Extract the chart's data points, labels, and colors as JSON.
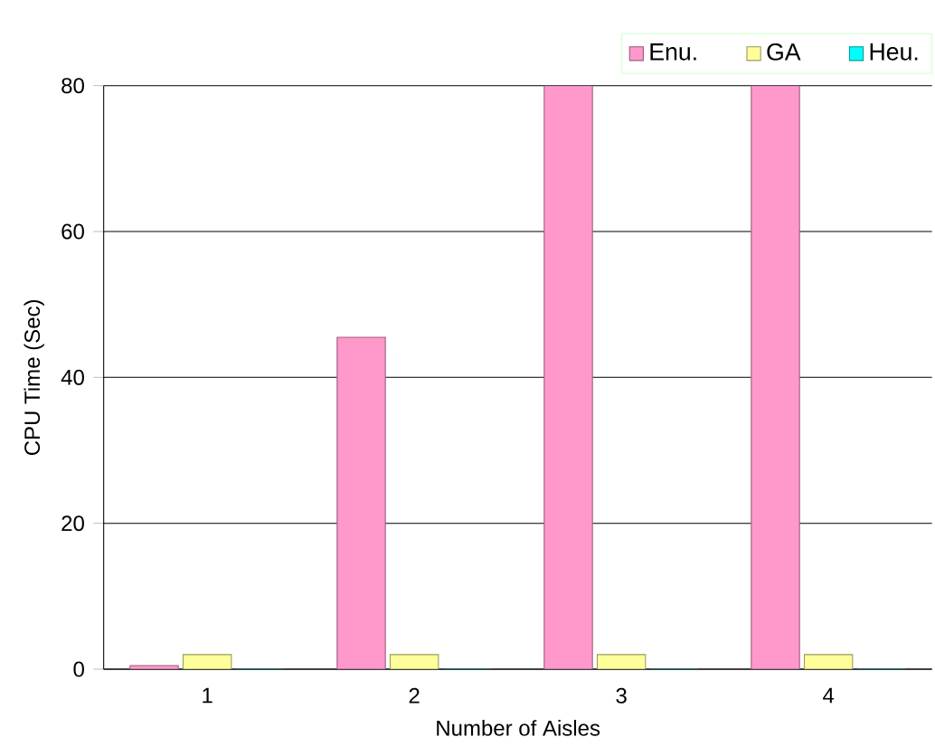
{
  "chart_data": {
    "type": "bar",
    "xlabel": "Number of Aisles",
    "ylabel": "CPU Time (Sec)",
    "categories": [
      "1",
      "2",
      "3",
      "4"
    ],
    "series": [
      {
        "name": "Enu.",
        "color": "#ff99cc",
        "values": [
          0.5,
          45.5,
          80,
          80
        ]
      },
      {
        "name": "GA",
        "color": "#ffff99",
        "values": [
          2,
          2,
          2,
          2
        ]
      },
      {
        "name": "Heu.",
        "color": "#00ffff",
        "values": [
          0,
          0,
          0,
          0
        ]
      }
    ],
    "ylim": [
      0,
      80
    ],
    "yticks": [
      0,
      20,
      40,
      60,
      80
    ],
    "grid": "y",
    "legend": "top right"
  }
}
